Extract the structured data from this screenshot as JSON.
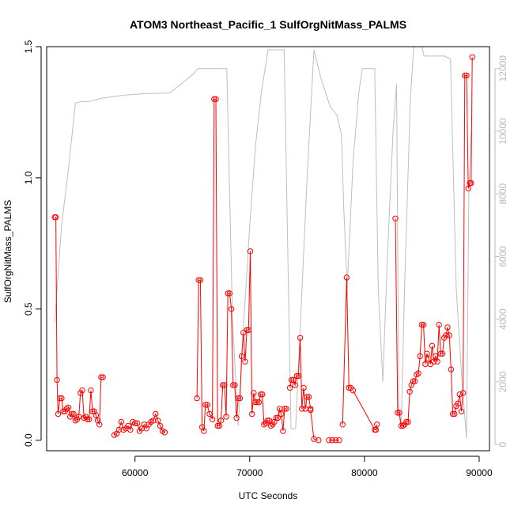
{
  "chart_data": {
    "type": "line",
    "title": "ATOM3 Northeast_Pacific_1 SulfOrgNitMass_PALMS",
    "xlabel": "UTC Seconds",
    "ylabel": "SulfOrgNitMass_PALMS",
    "xlim": [
      52300,
      90900
    ],
    "ylim": [
      -0.04,
      1.5
    ],
    "y2lim": [
      -200,
      12700
    ],
    "x_ticks": [
      60000,
      70000,
      80000,
      90000
    ],
    "y_ticks": [
      0.0,
      0.5,
      1.0,
      1.5
    ],
    "y2_ticks": [
      0,
      2000,
      4000,
      6000,
      8000,
      10000,
      12000
    ],
    "x_tick_labels": [
      "60000",
      "70000",
      "80000",
      "90000"
    ],
    "y_tick_labels": [
      "0.0",
      "0.5",
      "1.0",
      "1.5"
    ],
    "y2_tick_labels": [
      "0",
      "2000",
      "4000",
      "6000",
      "8000",
      "10000",
      "12000"
    ],
    "colors": {
      "series": "#ff0000",
      "altitude": "#bebebe",
      "axis": "#000000"
    },
    "series": [
      {
        "role": "primary",
        "color": "#ff0000",
        "marker": "open-circle",
        "segments": [
          [
            [
              53000,
              0.85
            ],
            [
              53100,
              0.85
            ],
            [
              53200,
              0.23
            ],
            [
              53300,
              0.1
            ],
            [
              53450,
              0.16
            ],
            [
              53600,
              0.16
            ],
            [
              53750,
              0.11
            ],
            [
              53900,
              0.11
            ],
            [
              54050,
              0.12
            ],
            [
              54200,
              0.125
            ],
            [
              54350,
              0.09
            ],
            [
              54500,
              0.1
            ],
            [
              54650,
              0.1
            ],
            [
              54800,
              0.075
            ],
            [
              54950,
              0.08
            ],
            [
              55100,
              0.09
            ],
            [
              55250,
              0.18
            ],
            [
              55400,
              0.19
            ],
            [
              55550,
              0.085
            ],
            [
              55700,
              0.09
            ],
            [
              55850,
              0.08
            ],
            [
              56000,
              0.08
            ],
            [
              56150,
              0.19
            ],
            [
              56300,
              0.11
            ],
            [
              56450,
              0.11
            ],
            [
              56600,
              0.095
            ],
            [
              56750,
              0.075
            ],
            [
              56900,
              0.06
            ],
            [
              57050,
              0.24
            ],
            [
              57200,
              0.24
            ]
          ],
          [
            [
              58200,
              0.02
            ],
            [
              58400,
              0.025
            ],
            [
              58600,
              0.04
            ],
            [
              58800,
              0.07
            ],
            [
              59000,
              0.04
            ],
            [
              59200,
              0.045
            ],
            [
              59400,
              0.055
            ],
            [
              59600,
              0.04
            ],
            [
              59800,
              0.07
            ],
            [
              60000,
              0.065
            ],
            [
              60200,
              0.065
            ],
            [
              60400,
              0.035
            ],
            [
              60600,
              0.045
            ],
            [
              60800,
              0.06
            ],
            [
              61000,
              0.045
            ],
            [
              61200,
              0.06
            ],
            [
              61400,
              0.07
            ],
            [
              61600,
              0.075
            ],
            [
              61800,
              0.1
            ],
            [
              62000,
              0.075
            ],
            [
              62200,
              0.055
            ],
            [
              62400,
              0.035
            ],
            [
              62600,
              0.03
            ]
          ],
          [
            [
              65400,
              0.16
            ],
            [
              65550,
              0.61
            ],
            [
              65700,
              0.61
            ],
            [
              65850,
              0.05
            ],
            [
              66000,
              0.035
            ],
            [
              66150,
              0.135
            ],
            [
              66300,
              0.135
            ],
            [
              66500,
              0.1
            ],
            [
              66750,
              0.08
            ],
            [
              66900,
              1.3
            ],
            [
              67050,
              1.3
            ],
            [
              67200,
              0.055
            ],
            [
              67350,
              0.055
            ],
            [
              67500,
              0.075
            ],
            [
              67650,
              0.21
            ],
            [
              67800,
              0.21
            ],
            [
              67950,
              0.09
            ],
            [
              68100,
              0.56
            ],
            [
              68250,
              0.56
            ],
            [
              68400,
              0.5
            ],
            [
              68550,
              0.21
            ],
            [
              68700,
              0.21
            ],
            [
              68850,
              0.085
            ],
            [
              69000,
              0.16
            ],
            [
              69150,
              0.16
            ],
            [
              69300,
              0.32
            ],
            [
              69450,
              0.41
            ],
            [
              69600,
              0.3
            ],
            [
              69750,
              0.42
            ],
            [
              69900,
              0.42
            ],
            [
              70050,
              0.72
            ],
            [
              70200,
              0.1
            ],
            [
              70350,
              0.18
            ],
            [
              70500,
              0.145
            ],
            [
              70650,
              0.145
            ],
            [
              70800,
              0.145
            ],
            [
              70950,
              0.175
            ],
            [
              71100,
              0.175
            ],
            [
              71250,
              0.06
            ],
            [
              71400,
              0.065
            ],
            [
              71550,
              0.075
            ],
            [
              71700,
              0.075
            ],
            [
              71850,
              0.055
            ],
            [
              72000,
              0.06
            ],
            [
              72150,
              0.07
            ],
            [
              72300,
              0.085
            ],
            [
              72450,
              0.085
            ],
            [
              72600,
              0.12
            ],
            [
              72750,
              0.1
            ],
            [
              72900,
              0.035
            ],
            [
              73050,
              0.12
            ],
            [
              73200,
              0.12
            ]
          ],
          [
            [
              73500,
              0.2
            ],
            [
              73650,
              0.23
            ],
            [
              73800,
              0.23
            ],
            [
              73950,
              0.21
            ],
            [
              74100,
              0.245
            ],
            [
              74250,
              0.245
            ],
            [
              74400,
              0.39
            ],
            [
              74550,
              0.12
            ],
            [
              74700,
              0.2
            ],
            [
              74850,
              0.12
            ],
            [
              75000,
              0.165
            ],
            [
              75150,
              0.165
            ],
            [
              75300,
              0.12
            ]
          ],
          [
            [
              75300,
              0.115
            ],
            [
              75600,
              0.005
            ],
            [
              76000,
              0.0
            ]
          ],
          [
            [
              76900,
              0.0
            ],
            [
              77200,
              0.0
            ],
            [
              77500,
              0.0
            ],
            [
              77800,
              0.0
            ]
          ],
          [
            [
              78100,
              0.06
            ],
            [
              78450,
              0.62
            ],
            [
              78650,
              0.2
            ],
            [
              78800,
              0.2
            ]
          ],
          [
            [
              79000,
              0.19
            ],
            [
              80900,
              0.04
            ],
            [
              81000,
              0.04
            ],
            [
              81100,
              0.06
            ]
          ],
          [
            [
              82700,
              0.845
            ],
            [
              82900,
              0.105
            ],
            [
              83050,
              0.105
            ],
            [
              83200,
              0.055
            ],
            [
              83350,
              0.055
            ],
            [
              83500,
              0.06
            ],
            [
              83650,
              0.07
            ],
            [
              83800,
              0.07
            ],
            [
              83950,
              0.185
            ],
            [
              84100,
              0.21
            ],
            [
              84250,
              0.225
            ],
            [
              84400,
              0.225
            ],
            [
              84550,
              0.25
            ],
            [
              84700,
              0.255
            ],
            [
              84850,
              0.32
            ],
            [
              85000,
              0.44
            ],
            [
              85150,
              0.44
            ],
            [
              85300,
              0.29
            ],
            [
              85450,
              0.33
            ],
            [
              85600,
              0.31
            ],
            [
              85750,
              0.29
            ],
            [
              85900,
              0.36
            ],
            [
              86050,
              0.3
            ],
            [
              86200,
              0.32
            ],
            [
              86350,
              0.3
            ],
            [
              86500,
              0.44
            ],
            [
              86650,
              0.33
            ],
            [
              86800,
              0.33
            ],
            [
              86950,
              0.39
            ],
            [
              87100,
              0.4
            ],
            [
              87250,
              0.43
            ],
            [
              87400,
              0.4
            ],
            [
              87550,
              0.27
            ],
            [
              87700,
              0.1
            ],
            [
              87850,
              0.1
            ],
            [
              88000,
              0.13
            ],
            [
              88150,
              0.14
            ],
            [
              88300,
              0.175
            ],
            [
              88450,
              0.11
            ],
            [
              88600,
              0.18
            ],
            [
              88750,
              1.39
            ],
            [
              88900,
              1.39
            ],
            [
              89050,
              0.96
            ],
            [
              89200,
              0.98
            ],
            [
              89300,
              0.98
            ],
            [
              89400,
              1.46
            ]
          ]
        ]
      },
      {
        "role": "secondary-axis",
        "color": "#bebebe",
        "marker": "none",
        "points": [
          [
            53000,
            3900
          ],
          [
            53600,
            7000
          ],
          [
            54200,
            8800
          ],
          [
            54800,
            10900
          ],
          [
            55400,
            10950
          ],
          [
            56000,
            10950
          ],
          [
            57000,
            11050
          ],
          [
            58000,
            11100
          ],
          [
            59000,
            11150
          ],
          [
            60000,
            11180
          ],
          [
            61000,
            11200
          ],
          [
            62000,
            11210
          ],
          [
            63000,
            11220
          ],
          [
            64000,
            11500
          ],
          [
            65000,
            11800
          ],
          [
            65500,
            12000
          ],
          [
            66800,
            12000
          ],
          [
            67200,
            12000
          ],
          [
            67600,
            12000
          ],
          [
            68000,
            12000
          ],
          [
            68500,
            4000
          ],
          [
            69000,
            600
          ],
          [
            69500,
            4000
          ],
          [
            70000,
            7000
          ],
          [
            70500,
            9500
          ],
          [
            71000,
            11200
          ],
          [
            71600,
            12600
          ],
          [
            72500,
            12600
          ],
          [
            73000,
            12600
          ],
          [
            73600,
            500
          ],
          [
            74000,
            500
          ],
          [
            74500,
            4500
          ],
          [
            75000,
            8500
          ],
          [
            75600,
            12600
          ],
          [
            76200,
            11700
          ],
          [
            77000,
            10800
          ],
          [
            77600,
            10500
          ],
          [
            78000,
            9900
          ],
          [
            78200,
            7500
          ],
          [
            78500,
            5000
          ],
          [
            79000,
            9000
          ],
          [
            79500,
            11200
          ],
          [
            79800,
            12000
          ],
          [
            80000,
            12000
          ],
          [
            80500,
            12000
          ],
          [
            80900,
            12000
          ],
          [
            81200,
            5000
          ],
          [
            81600,
            2000
          ],
          [
            82000,
            6000
          ],
          [
            82500,
            10000
          ],
          [
            82800,
            11500
          ],
          [
            83000,
            1000
          ],
          [
            83200,
            500
          ],
          [
            83500,
            5000
          ],
          [
            84000,
            11000
          ],
          [
            84300,
            12700
          ],
          [
            85000,
            12700
          ],
          [
            85200,
            12400
          ],
          [
            86000,
            12400
          ],
          [
            87000,
            12400
          ],
          [
            87500,
            12300
          ],
          [
            88000,
            5000
          ],
          [
            88500,
            2000
          ],
          [
            88900,
            200
          ],
          [
            89100,
            8000
          ],
          [
            89300,
            10000
          ]
        ]
      }
    ]
  }
}
